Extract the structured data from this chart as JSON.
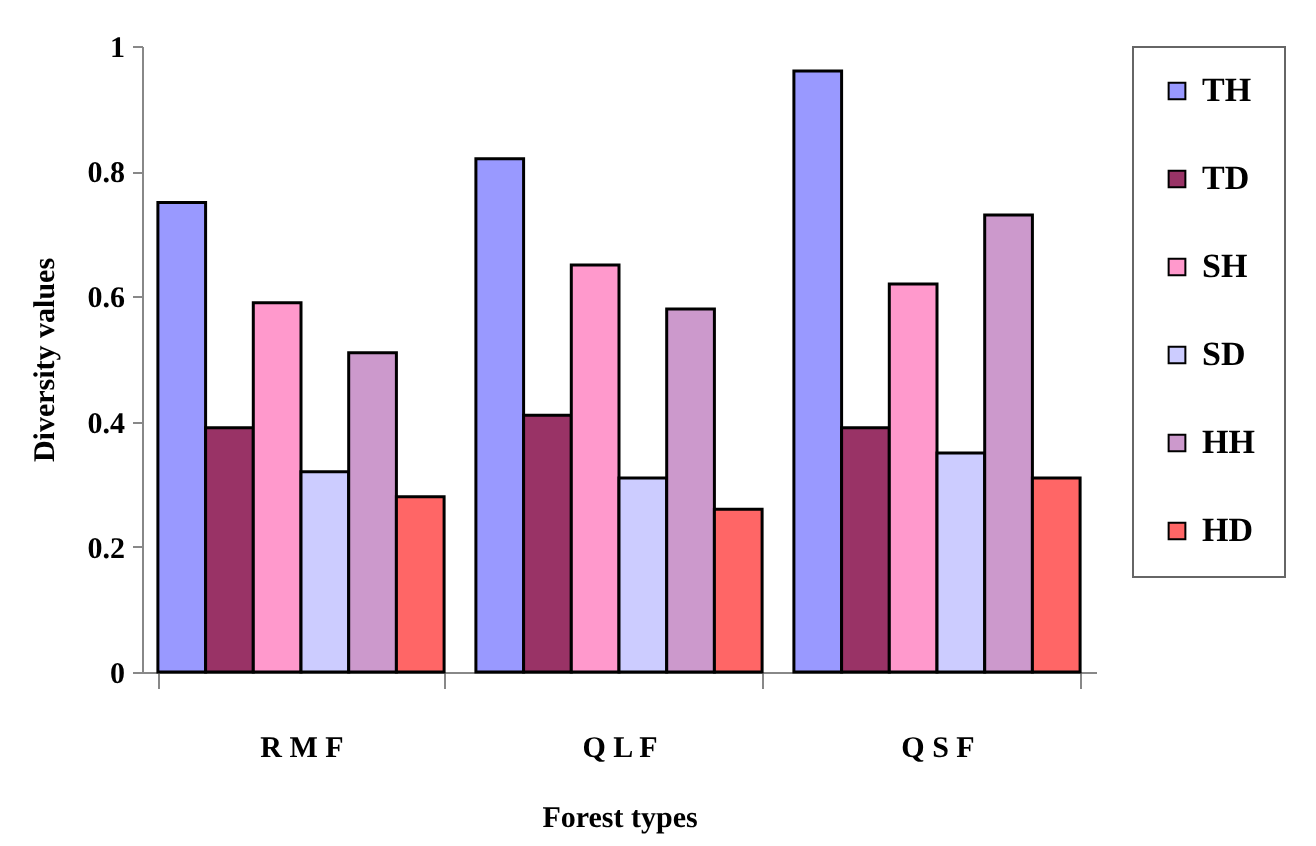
{
  "chart_data": {
    "type": "bar",
    "xlabel": "Forest types",
    "ylabel": "Diversity values",
    "categories": [
      "R M F",
      "Q L F",
      "Q S F"
    ],
    "series": [
      {
        "name": "TH",
        "color": "#9999ff",
        "values": [
          0.75,
          0.82,
          0.96
        ]
      },
      {
        "name": "TD",
        "color": "#993366",
        "values": [
          0.39,
          0.41,
          0.39
        ]
      },
      {
        "name": "SH",
        "color": "#ff99cc",
        "values": [
          0.59,
          0.65,
          0.62
        ]
      },
      {
        "name": "SD",
        "color": "#ccccff",
        "values": [
          0.32,
          0.31,
          0.35
        ]
      },
      {
        "name": "HH",
        "color": "#cc99cc",
        "values": [
          0.51,
          0.58,
          0.73
        ]
      },
      {
        "name": "HD",
        "color": "#ff6666",
        "values": [
          0.28,
          0.26,
          0.31
        ]
      }
    ],
    "ylim": [
      0,
      1
    ],
    "yticks": [
      0,
      0.2,
      0.4,
      0.6,
      0.8,
      1
    ],
    "grid": false,
    "legend": "right"
  }
}
